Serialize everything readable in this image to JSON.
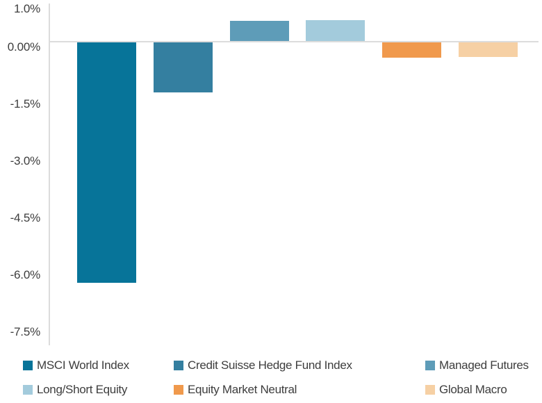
{
  "chart_data": {
    "type": "bar",
    "categories": [
      "MSCI World Index",
      "Credit Suisse Hedge Fund Index",
      "Managed Futures",
      "Long/Short Equity",
      "Equity Market Neutral",
      "Global Macro"
    ],
    "values": [
      -6.35,
      -1.35,
      0.55,
      0.56,
      -0.43,
      -0.4
    ],
    "bar_colors": [
      "#077499",
      "#347fa0",
      "#5e9cb8",
      "#a3cbdc",
      "#f0994c",
      "#f6d0a4"
    ],
    "title": "",
    "xlabel": "",
    "ylabel": "",
    "ylim": [
      -8.0,
      1.0
    ],
    "yticks": [
      {
        "value": 1.0,
        "label": "1.0%"
      },
      {
        "value": 0.0,
        "label": "0.00%"
      },
      {
        "value": -1.5,
        "label": "-1.5%"
      },
      {
        "value": -3.0,
        "label": "-3.0%"
      },
      {
        "value": -4.5,
        "label": "-4.5%"
      },
      {
        "value": -6.0,
        "label": "-6.0%"
      },
      {
        "value": -7.5,
        "label": "-7.5%"
      }
    ],
    "grid": "zero-line-only",
    "legend_position": "bottom"
  },
  "legend": {
    "items": [
      {
        "label": "MSCI World Index",
        "color": "#077499"
      },
      {
        "label": "Credit Suisse Hedge Fund Index",
        "color": "#347fa0"
      },
      {
        "label": "Managed Futures",
        "color": "#5e9cb8"
      },
      {
        "label": "Long/Short Equity",
        "color": "#a3cbdc"
      },
      {
        "label": "Equity Market Neutral",
        "color": "#f0994c"
      },
      {
        "label": "Global Macro",
        "color": "#f6d0a4"
      }
    ]
  },
  "colors": {
    "axis_line": "#dcdcdc",
    "zero_gridline": "#dcdcdc",
    "tick_text": "#3d3d3d",
    "legend_text": "#3d3d3d",
    "background": "#ffffff"
  }
}
